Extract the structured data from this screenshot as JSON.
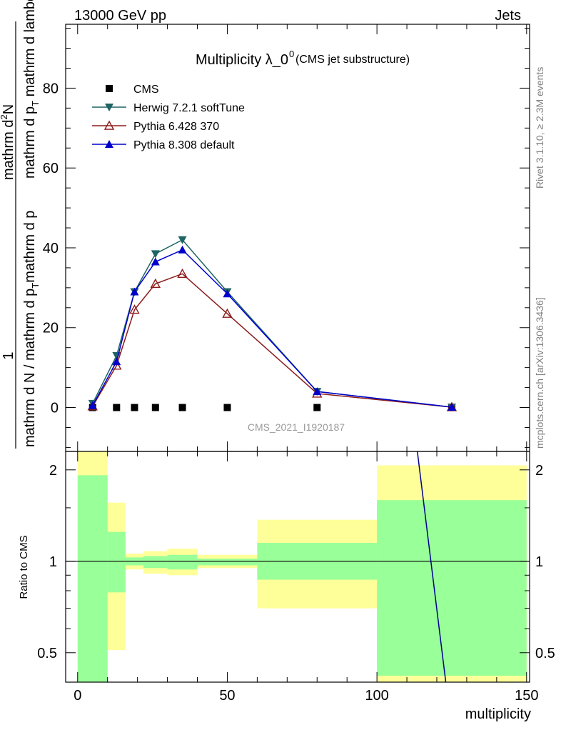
{
  "header": {
    "left": "13000 GeV pp",
    "right": "Jets"
  },
  "side_labels": {
    "rivet": "Rivet 3.1.10, ≥ 2.3M events",
    "mcplots": "mcplots.cern.ch [arXiv:1306.3436]"
  },
  "chart_data": [
    {
      "type": "line",
      "panel": "main",
      "title": "Multiplicity λ_0",
      "title_sup": "0",
      "subtitle": "(CMS jet substructure)",
      "watermark": "CMS_2021_I1920187",
      "ylabel_num": "1",
      "ylabel_den": "mathrm d N / mathrm d p_T mathrm d p_T mathrm d lambda",
      "ylabel_top": "mathrm d²N",
      "ylabel_den_text": "mathrm d N / mathrm d p",
      "ylabel_den_mid": "mathrm d p",
      "ylabel_den_tail": "mathrm d lambda",
      "ylabel_sub": "T",
      "ylabel_sup": "2",
      "ylabel_top_a": "mathrm d",
      "ylabel_top_b": "N",
      "xlim": [
        -4,
        151
      ],
      "ylim": [
        -11,
        96
      ],
      "yticks": [
        0,
        20,
        40,
        60,
        80
      ],
      "legend_position": "top-left",
      "series": [
        {
          "name": "CMS",
          "color": "#000000",
          "marker": "square",
          "x": [
            5,
            13,
            19,
            26,
            35,
            50,
            80,
            125
          ],
          "y": [
            0,
            0,
            0,
            0,
            0,
            0,
            0,
            0
          ]
        },
        {
          "name": "Herwig 7.2.1 softTune",
          "color": "#1e6464",
          "marker": "triangle-down",
          "x": [
            5,
            13,
            19,
            26,
            35,
            50,
            80,
            125
          ],
          "y": [
            1.0,
            13.0,
            29.0,
            38.5,
            42.0,
            29.0,
            4.0,
            0.1
          ]
        },
        {
          "name": "Pythia 6.428 370",
          "color": "#8b1a1a",
          "marker": "triangle-up-open",
          "x": [
            5,
            13,
            19,
            26,
            35,
            50,
            80,
            125
          ],
          "y": [
            0.3,
            10.5,
            24.5,
            31.0,
            33.5,
            23.5,
            3.5,
            0.1
          ]
        },
        {
          "name": "Pythia 8.308 default",
          "color": "#0000cc",
          "marker": "triangle-up",
          "x": [
            5,
            13,
            19,
            26,
            35,
            50,
            80,
            125
          ],
          "y": [
            0.5,
            11.5,
            29.0,
            36.5,
            39.5,
            28.5,
            4.0,
            0.1
          ]
        }
      ]
    },
    {
      "type": "area",
      "panel": "ratio",
      "ylabel": "Ratio to CMS",
      "xlabel": "multiplicity",
      "xlim": [
        -4,
        151
      ],
      "ylim": [
        0.4,
        2.3
      ],
      "yscale": "log",
      "yticks": [
        0.5,
        1,
        2
      ],
      "xticks": [
        0,
        50,
        100,
        150
      ],
      "bands": [
        {
          "x0": 0,
          "x1": 10,
          "inner_lo": 0.4,
          "inner_hi": 1.92,
          "outer_lo": 0.4,
          "outer_hi": 2.3
        },
        {
          "x0": 10,
          "x1": 16,
          "inner_lo": 0.79,
          "inner_hi": 1.25,
          "outer_lo": 0.51,
          "outer_hi": 1.56
        },
        {
          "x0": 16,
          "x1": 22,
          "inner_lo": 0.97,
          "inner_hi": 1.03,
          "outer_lo": 0.94,
          "outer_hi": 1.06
        },
        {
          "x0": 22,
          "x1": 30,
          "inner_lo": 0.95,
          "inner_hi": 1.04,
          "outer_lo": 0.91,
          "outer_hi": 1.08
        },
        {
          "x0": 30,
          "x1": 40,
          "inner_lo": 0.94,
          "inner_hi": 1.05,
          "outer_lo": 0.9,
          "outer_hi": 1.1
        },
        {
          "x0": 40,
          "x1": 60,
          "inner_lo": 0.97,
          "inner_hi": 1.02,
          "outer_lo": 0.95,
          "outer_hi": 1.05
        },
        {
          "x0": 60,
          "x1": 100,
          "inner_lo": 0.87,
          "inner_hi": 1.15,
          "outer_lo": 0.7,
          "outer_hi": 1.37
        },
        {
          "x0": 100,
          "x1": 150,
          "inner_lo": 0.42,
          "inner_hi": 1.59,
          "outer_lo": 0.4,
          "outer_hi": 2.07
        }
      ],
      "inner_color": "#99ff99",
      "outer_color": "#ffff99",
      "reference_line": 1,
      "ratio_line": {
        "color": "#00008b",
        "x": [
          113.5,
          123
        ],
        "y": [
          2.3,
          0.4
        ]
      }
    }
  ]
}
